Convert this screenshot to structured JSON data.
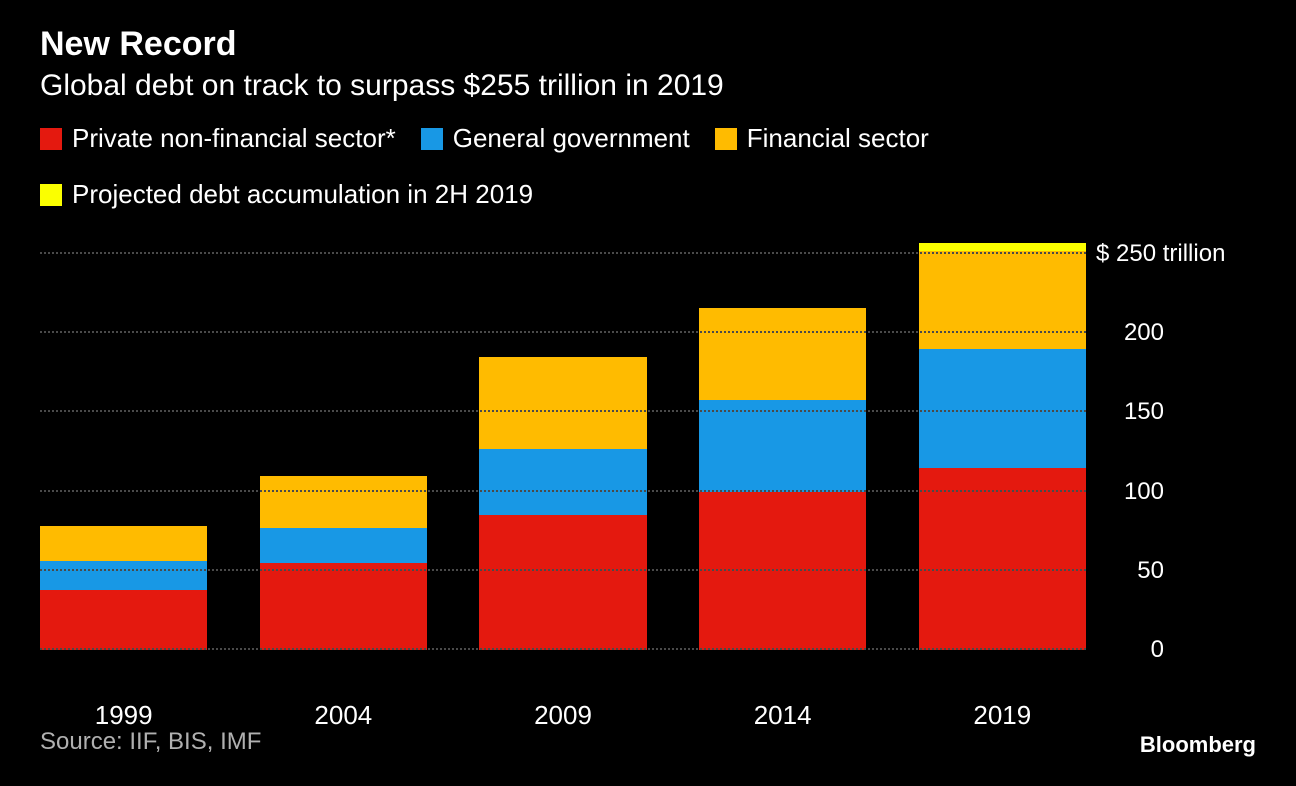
{
  "title": "New Record",
  "subtitle": "Global debt on track to surpass $255 trillion in 2019",
  "legend": [
    {
      "label": "Private non-financial sector*",
      "color": "#e4190f"
    },
    {
      "label": "General government",
      "color": "#1898e5"
    },
    {
      "label": "Financial sector",
      "color": "#ffbb00"
    },
    {
      "label": "Projected debt accumulation in 2H 2019",
      "color": "#fbff00"
    }
  ],
  "chart": {
    "type": "stacked-bar",
    "background_color": "#000000",
    "grid_color": "#4a4a4a",
    "text_color": "#ffffff",
    "bar_width_pct": 16,
    "ylim": [
      0,
      265
    ],
    "yticks": [
      0,
      50,
      100,
      150,
      200,
      250
    ],
    "y_unit_prefix": "$",
    "y_unit_suffix": " trillion",
    "categories": [
      "1999",
      "2004",
      "2009",
      "2014",
      "2019"
    ],
    "series": [
      {
        "name": "private_non_financial",
        "color": "#e4190f",
        "values": [
          38,
          55,
          85,
          100,
          115
        ]
      },
      {
        "name": "general_government",
        "color": "#1898e5",
        "values": [
          18,
          22,
          42,
          58,
          75
        ]
      },
      {
        "name": "financial_sector",
        "color": "#ffbb00",
        "values": [
          22,
          33,
          58,
          58,
          62
        ]
      },
      {
        "name": "projected_2h2019",
        "color": "#fbff00",
        "values": [
          0,
          0,
          0,
          0,
          5
        ]
      }
    ],
    "title_fontsize": 34,
    "subtitle_fontsize": 30,
    "label_fontsize": 26,
    "tick_fontsize": 24
  },
  "source": "Source: IIF, BIS, IMF",
  "brand": "Bloomberg"
}
